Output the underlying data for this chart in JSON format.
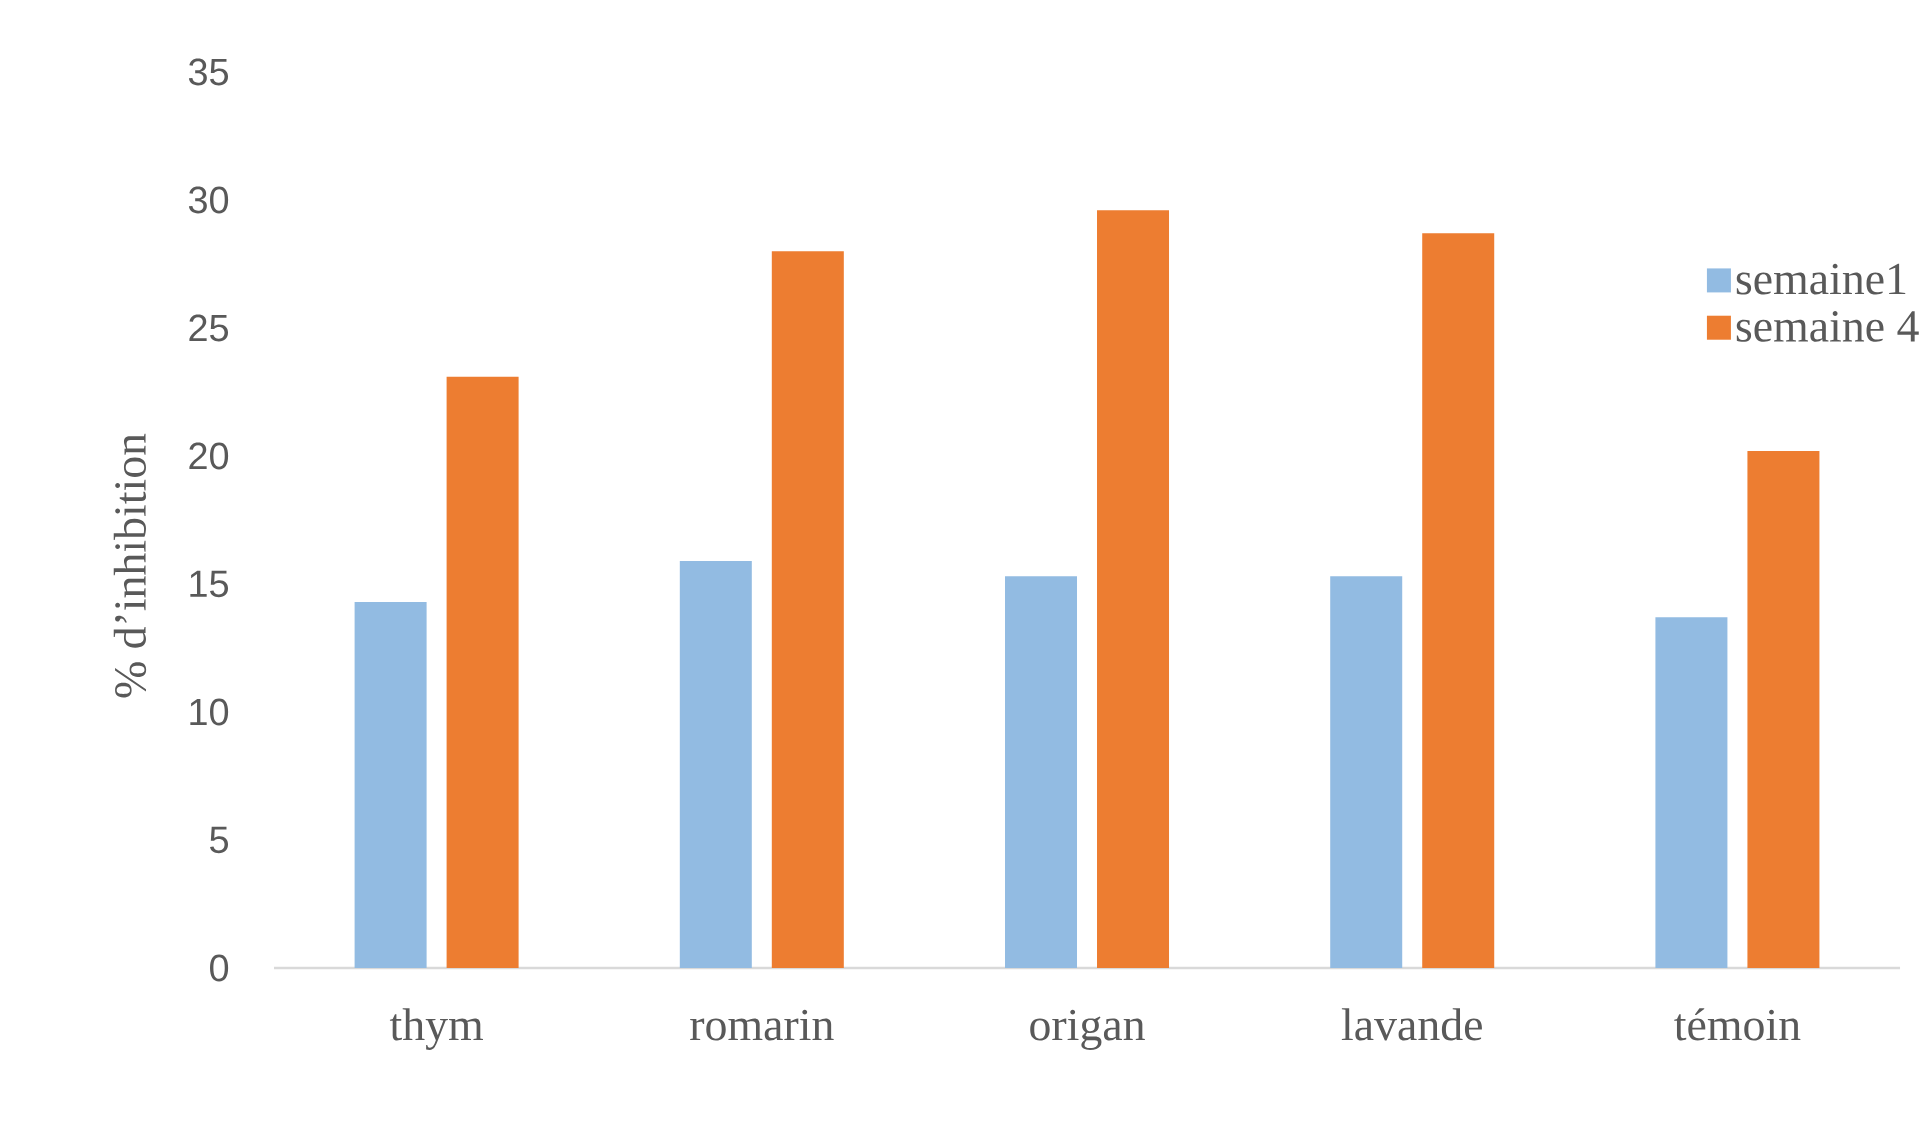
{
  "chart_data": {
    "type": "bar",
    "ylabel": "% d’inhibition",
    "categories": [
      "thym",
      "romarin",
      "origan",
      "lavande",
      "témoin"
    ],
    "series": [
      {
        "name": "semaine1",
        "color": "#92bbe2",
        "values": [
          14.3,
          15.9,
          15.3,
          15.3,
          13.7
        ]
      },
      {
        "name": "semaine 4",
        "color": "#ed7d31",
        "values": [
          23.1,
          28.0,
          29.6,
          28.7,
          20.2
        ]
      }
    ],
    "ylim": [
      0,
      35
    ],
    "yticks": [
      0,
      5,
      10,
      15,
      20,
      25,
      30,
      35
    ],
    "legend": "top right"
  }
}
